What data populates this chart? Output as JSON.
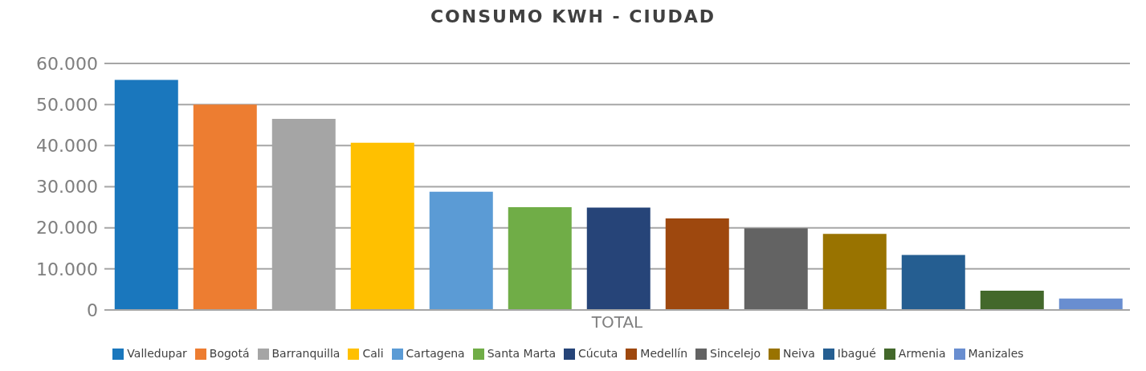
{
  "chart_data": {
    "type": "bar",
    "title": "CONSUMO KWH - CIUDAD",
    "categories": [
      "TOTAL"
    ],
    "series": [
      {
        "name": "Valledupar",
        "color": "#1a77bd",
        "values": [
          56000
        ]
      },
      {
        "name": "Bogotá",
        "color": "#ed7d31",
        "values": [
          50000
        ]
      },
      {
        "name": "Barranquilla",
        "color": "#a5a5a5",
        "values": [
          46500
        ]
      },
      {
        "name": "Cali",
        "color": "#ffc000",
        "values": [
          40700
        ]
      },
      {
        "name": "Cartagena",
        "color": "#5b9bd5",
        "values": [
          28800
        ]
      },
      {
        "name": "Santa Marta",
        "color": "#70ad47",
        "values": [
          25000
        ]
      },
      {
        "name": "Cúcuta",
        "color": "#264478",
        "values": [
          24900
        ]
      },
      {
        "name": "Medellín",
        "color": "#9e480e",
        "values": [
          22300
        ]
      },
      {
        "name": "Sincelejo",
        "color": "#636363",
        "values": [
          19900
        ]
      },
      {
        "name": "Neiva",
        "color": "#997300",
        "values": [
          18500
        ]
      },
      {
        "name": "Ibagué",
        "color": "#255e91",
        "values": [
          13400
        ]
      },
      {
        "name": "Armenia",
        "color": "#43682b",
        "values": [
          4700
        ]
      },
      {
        "name": "Manizales",
        "color": "#698ed0",
        "values": [
          2800
        ]
      }
    ],
    "ylim": [
      0,
      60000
    ],
    "yticks": [
      {
        "value": 0,
        "label": "0"
      },
      {
        "value": 10000,
        "label": "10.000"
      },
      {
        "value": 20000,
        "label": "20.000"
      },
      {
        "value": 30000,
        "label": "30.000"
      },
      {
        "value": 40000,
        "label": "40.000"
      },
      {
        "value": 50000,
        "label": "50.000"
      },
      {
        "value": 60000,
        "label": "60.000"
      }
    ],
    "grid": "y",
    "legend": "bottom"
  }
}
